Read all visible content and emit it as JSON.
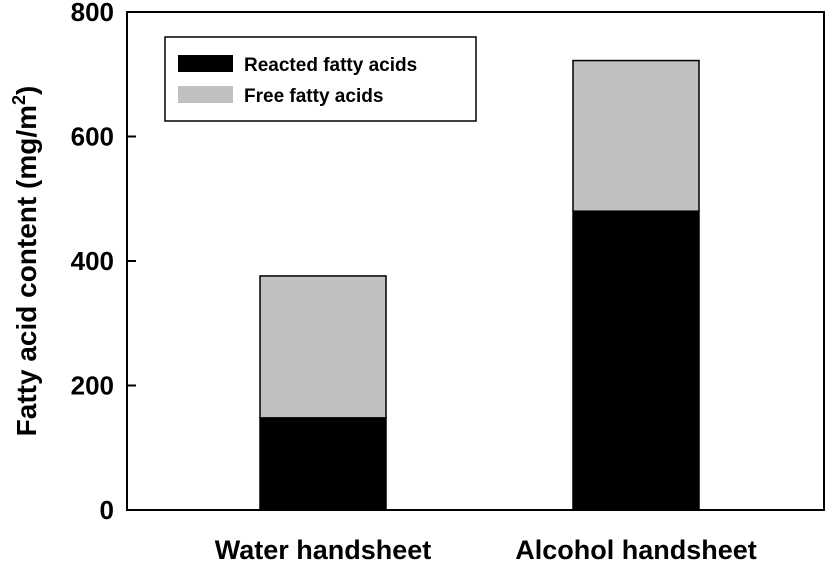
{
  "chart_data": {
    "type": "bar",
    "stacked": true,
    "categories": [
      "Water handsheet",
      "Alcohol handsheet"
    ],
    "series": [
      {
        "name": "Reacted fatty acids",
        "color": "#000000",
        "values": [
          148,
          480
        ]
      },
      {
        "name": "Free fatty acids",
        "color": "#c0c0c0",
        "values": [
          228,
          242
        ]
      }
    ],
    "title": "",
    "xlabel": "",
    "ylabel": "Fatty acid content (mg/m",
    "ylabel_superscript": "2",
    "ylabel_suffix": ")",
    "ylim": [
      0,
      800
    ],
    "yticks": [
      "0",
      "200",
      "400",
      "600",
      "800"
    ],
    "grid": false,
    "legend_position": "top-left"
  }
}
